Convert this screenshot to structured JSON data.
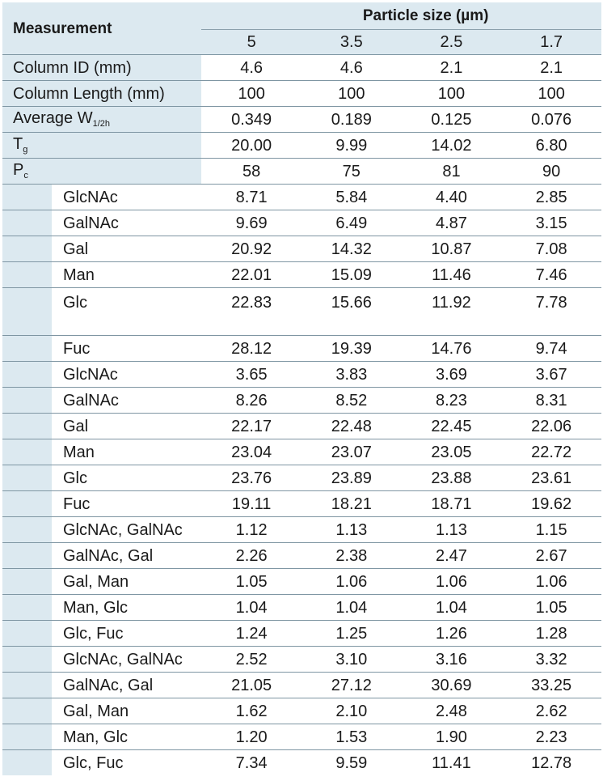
{
  "header": {
    "measurement_label": "Measurement",
    "particle_size_label": "Particle size (µm)",
    "particle_sizes": [
      "5",
      "3.5",
      "2.5",
      "1.7"
    ]
  },
  "rows": [
    {
      "label": "Column ID (mm)",
      "values": [
        "4.6",
        "4.6",
        "2.1",
        "2.1"
      ]
    },
    {
      "label": "Column Length (mm)",
      "values": [
        "100",
        "100",
        "100",
        "100"
      ]
    },
    {
      "label_main": "Average W",
      "label_sub": "1/2h",
      "values": [
        "0.349",
        "0.189",
        "0.125",
        "0.076"
      ]
    },
    {
      "label_main": "T",
      "label_sub": "g",
      "values": [
        "20.00",
        "9.99",
        "14.02",
        "6.80"
      ]
    },
    {
      "label_main": "P",
      "label_sub": "c",
      "values": [
        "58",
        "75",
        "81",
        "90"
      ]
    },
    {
      "label": "GlcNAc",
      "values": [
        "8.71",
        "5.84",
        "4.40",
        "2.85"
      ]
    },
    {
      "label": "GalNAc",
      "values": [
        "9.69",
        "6.49",
        "4.87",
        "3.15"
      ]
    },
    {
      "label": "Gal",
      "values": [
        "20.92",
        "14.32",
        "10.87",
        "7.08"
      ]
    },
    {
      "label": "Man",
      "values": [
        "22.01",
        "15.09",
        "11.46",
        "7.46"
      ]
    },
    {
      "label": "Glc",
      "values": [
        "22.83",
        "15.66",
        "11.92",
        "7.78"
      ]
    },
    {
      "label": "Fuc",
      "values": [
        "28.12",
        "19.39",
        "14.76",
        "9.74"
      ]
    },
    {
      "label": "GlcNAc",
      "values": [
        "3.65",
        "3.83",
        "3.69",
        "3.67"
      ]
    },
    {
      "label": "GalNAc",
      "values": [
        "8.26",
        "8.52",
        "8.23",
        "8.31"
      ]
    },
    {
      "label": "Gal",
      "values": [
        "22.17",
        "22.48",
        "22.45",
        "22.06"
      ]
    },
    {
      "label": "Man",
      "values": [
        "23.04",
        "23.07",
        "23.05",
        "22.72"
      ]
    },
    {
      "label": "Glc",
      "values": [
        "23.76",
        "23.89",
        "23.88",
        "23.61"
      ]
    },
    {
      "label": "Fuc",
      "values": [
        "19.11",
        "18.21",
        "18.71",
        "19.62"
      ]
    },
    {
      "label": "GlcNAc, GalNAc",
      "values": [
        "1.12",
        "1.13",
        "1.13",
        "1.15"
      ]
    },
    {
      "label": "GalNAc, Gal",
      "values": [
        "2.26",
        "2.38",
        "2.47",
        "2.67"
      ]
    },
    {
      "label": "Gal, Man",
      "values": [
        "1.05",
        "1.06",
        "1.06",
        "1.06"
      ]
    },
    {
      "label": "Man, Glc",
      "values": [
        "1.04",
        "1.04",
        "1.04",
        "1.05"
      ]
    },
    {
      "label": "Glc, Fuc",
      "values": [
        "1.24",
        "1.25",
        "1.26",
        "1.28"
      ]
    },
    {
      "label": "GlcNAc, GalNAc",
      "values": [
        "2.52",
        "3.10",
        "3.16",
        "3.32"
      ]
    },
    {
      "label": "GalNAc, Gal",
      "values": [
        "21.05",
        "27.12",
        "30.69",
        "33.25"
      ]
    },
    {
      "label": "Gal, Man",
      "values": [
        "1.62",
        "2.10",
        "2.48",
        "2.62"
      ]
    },
    {
      "label": "Man, Glc",
      "values": [
        "1.20",
        "1.53",
        "1.90",
        "2.23"
      ]
    },
    {
      "label": "Glc, Fuc",
      "values": [
        "7.34",
        "9.59",
        "11.41",
        "12.78"
      ]
    }
  ]
}
